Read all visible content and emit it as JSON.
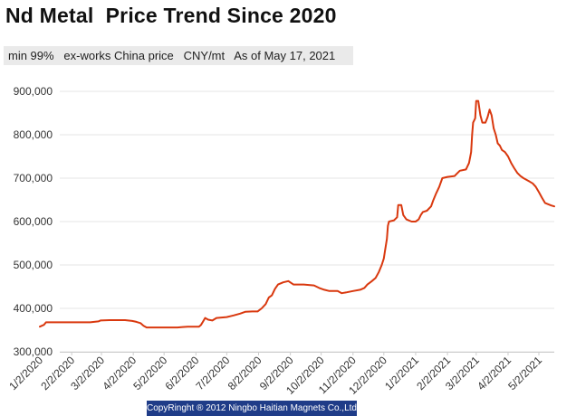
{
  "header": {
    "title": "Nd Metal  Price Trend Since 2020",
    "subtitle": "min 99%   ex-works China price   CNY/mt   As of May 17, 2021"
  },
  "footer": {
    "copyright": "CopyRinght ® 2012 Ningbo Haitian Magnets Co.,Ltd"
  },
  "colors": {
    "line": "#d9380e",
    "grid": "#e4e4e4",
    "footer_bg": "#1f3c88"
  },
  "chart_data": {
    "type": "line",
    "title": "Nd Metal  Price Trend Since 2020",
    "subtitle": "min 99%   ex-works China price   CNY/mt   As of May 17, 2021",
    "xlabel": "",
    "ylabel": "",
    "ylim": [
      300000,
      900000
    ],
    "xlim": [
      "2020-01-02",
      "2021-05-17"
    ],
    "grid": true,
    "legend": "none",
    "y_ticks": [
      "300,000",
      "400,000",
      "500,000",
      "600,000",
      "700,000",
      "800,000",
      "900,000"
    ],
    "y_tick_values": [
      300000,
      400000,
      500000,
      600000,
      700000,
      800000,
      900000
    ],
    "x_ticks": [
      "1/2/2020",
      "2/2/2020",
      "3/2/2020",
      "4/2/2020",
      "5/2/2020",
      "6/2/2020",
      "7/2/2020",
      "8/2/2020",
      "9/2/2020",
      "10/2/2020",
      "11/2/2020",
      "12/2/2020",
      "1/2/2021",
      "2/2/2021",
      "3/2/2021",
      "4/2/2021",
      "5/2/2021"
    ],
    "x_tick_dates": [
      "2020-01-02",
      "2020-02-02",
      "2020-03-02",
      "2020-04-02",
      "2020-05-02",
      "2020-06-02",
      "2020-07-02",
      "2020-08-02",
      "2020-09-02",
      "2020-10-02",
      "2020-11-02",
      "2020-12-02",
      "2021-01-02",
      "2021-02-02",
      "2021-03-02",
      "2021-04-02",
      "2021-05-02"
    ],
    "series": [
      {
        "points": [
          [
            "2020-01-02",
            358000
          ],
          [
            "2020-01-06",
            362000
          ],
          [
            "2020-01-08",
            368000
          ],
          [
            "2020-01-20",
            368000
          ],
          [
            "2020-02-20",
            368000
          ],
          [
            "2020-02-28",
            370000
          ],
          [
            "2020-03-01",
            372000
          ],
          [
            "2020-03-10",
            373000
          ],
          [
            "2020-03-25",
            373000
          ],
          [
            "2020-04-01",
            371000
          ],
          [
            "2020-04-05",
            369000
          ],
          [
            "2020-04-09",
            366000
          ],
          [
            "2020-04-12",
            360000
          ],
          [
            "2020-04-15",
            356000
          ],
          [
            "2020-04-30",
            356000
          ],
          [
            "2020-05-15",
            356000
          ],
          [
            "2020-05-20",
            357000
          ],
          [
            "2020-05-25",
            358000
          ],
          [
            "2020-06-05",
            358000
          ],
          [
            "2020-06-07",
            362000
          ],
          [
            "2020-06-09",
            370000
          ],
          [
            "2020-06-11",
            378000
          ],
          [
            "2020-06-14",
            374000
          ],
          [
            "2020-06-18",
            372000
          ],
          [
            "2020-06-22",
            378000
          ],
          [
            "2020-07-02",
            380000
          ],
          [
            "2020-07-09",
            384000
          ],
          [
            "2020-07-15",
            388000
          ],
          [
            "2020-07-20",
            392000
          ],
          [
            "2020-07-27",
            393000
          ],
          [
            "2020-08-01",
            393000
          ],
          [
            "2020-08-05",
            400000
          ],
          [
            "2020-08-09",
            410000
          ],
          [
            "2020-08-12",
            425000
          ],
          [
            "2020-08-15",
            430000
          ],
          [
            "2020-08-18",
            445000
          ],
          [
            "2020-08-21",
            455000
          ],
          [
            "2020-08-26",
            460000
          ],
          [
            "2020-08-31",
            463000
          ],
          [
            "2020-09-05",
            455000
          ],
          [
            "2020-09-15",
            455000
          ],
          [
            "2020-09-25",
            453000
          ],
          [
            "2020-09-30",
            447000
          ],
          [
            "2020-10-05",
            443000
          ],
          [
            "2020-10-10",
            440000
          ],
          [
            "2020-10-18",
            440000
          ],
          [
            "2020-10-22",
            435000
          ],
          [
            "2020-10-27",
            437000
          ],
          [
            "2020-11-02",
            440000
          ],
          [
            "2020-11-09",
            443000
          ],
          [
            "2020-11-13",
            447000
          ],
          [
            "2020-11-16",
            455000
          ],
          [
            "2020-11-20",
            462000
          ],
          [
            "2020-11-24",
            470000
          ],
          [
            "2020-11-27",
            483000
          ],
          [
            "2020-11-30",
            500000
          ],
          [
            "2020-12-02",
            515000
          ],
          [
            "2020-12-03",
            530000
          ],
          [
            "2020-12-05",
            560000
          ],
          [
            "2020-12-06",
            590000
          ],
          [
            "2020-12-07",
            600000
          ],
          [
            "2020-12-12",
            603000
          ],
          [
            "2020-12-15",
            610000
          ],
          [
            "2020-12-16",
            638000
          ],
          [
            "2020-12-19",
            638000
          ],
          [
            "2020-12-21",
            615000
          ],
          [
            "2020-12-24",
            605000
          ],
          [
            "2020-12-29",
            600000
          ],
          [
            "2021-01-02",
            600000
          ],
          [
            "2021-01-05",
            605000
          ],
          [
            "2021-01-07",
            615000
          ],
          [
            "2021-01-09",
            622000
          ],
          [
            "2021-01-13",
            625000
          ],
          [
            "2021-01-17",
            635000
          ],
          [
            "2021-01-19",
            648000
          ],
          [
            "2021-01-22",
            665000
          ],
          [
            "2021-01-25",
            680000
          ],
          [
            "2021-01-28",
            700000
          ],
          [
            "2021-02-02",
            703000
          ],
          [
            "2021-02-09",
            705000
          ],
          [
            "2021-02-11",
            710000
          ],
          [
            "2021-02-14",
            717000
          ],
          [
            "2021-02-20",
            720000
          ],
          [
            "2021-02-23",
            735000
          ],
          [
            "2021-02-25",
            760000
          ],
          [
            "2021-02-26",
            800000
          ],
          [
            "2021-02-27",
            828000
          ],
          [
            "2021-03-01",
            838000
          ],
          [
            "2021-03-02",
            878000
          ],
          [
            "2021-03-04",
            878000
          ],
          [
            "2021-03-06",
            845000
          ],
          [
            "2021-03-08",
            828000
          ],
          [
            "2021-03-11",
            828000
          ],
          [
            "2021-03-13",
            840000
          ],
          [
            "2021-03-15",
            858000
          ],
          [
            "2021-03-17",
            845000
          ],
          [
            "2021-03-19",
            815000
          ],
          [
            "2021-03-21",
            800000
          ],
          [
            "2021-03-23",
            780000
          ],
          [
            "2021-03-25",
            775000
          ],
          [
            "2021-03-27",
            765000
          ],
          [
            "2021-03-30",
            760000
          ],
          [
            "2021-04-02",
            750000
          ],
          [
            "2021-04-05",
            735000
          ],
          [
            "2021-04-08",
            723000
          ],
          [
            "2021-04-11",
            712000
          ],
          [
            "2021-04-14",
            705000
          ],
          [
            "2021-04-17",
            700000
          ],
          [
            "2021-04-20",
            696000
          ],
          [
            "2021-04-23",
            692000
          ],
          [
            "2021-04-26",
            688000
          ],
          [
            "2021-04-29",
            680000
          ],
          [
            "2021-05-02",
            668000
          ],
          [
            "2021-05-05",
            655000
          ],
          [
            "2021-05-08",
            643000
          ],
          [
            "2021-05-11",
            640000
          ],
          [
            "2021-05-14",
            637000
          ],
          [
            "2021-05-17",
            635000
          ]
        ]
      }
    ]
  }
}
